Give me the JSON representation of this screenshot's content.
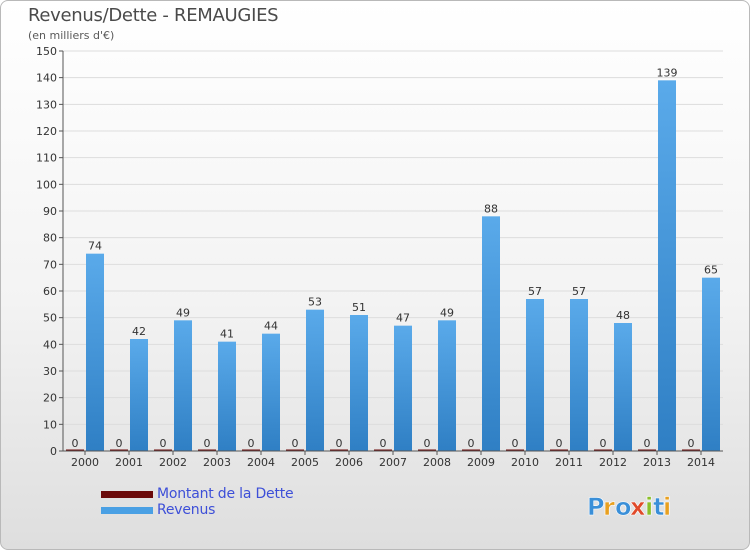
{
  "colors": {
    "dette": "#6b0a0a",
    "revenus": "#3d8fd6",
    "revenus_light": "#5aaaea",
    "grid": "#dddddd",
    "axis": "#555555",
    "text": "#333333"
  },
  "header": {
    "title": "Revenus/Dette - REMAUGIES",
    "subtitle": "(en milliers d'€)"
  },
  "legend": {
    "items": [
      {
        "label": "Montant de la Dette",
        "color": "#6b0a0a"
      },
      {
        "label": "Revenus",
        "color": "#4aa0e4"
      }
    ]
  },
  "logo": {
    "text": "Proxiti",
    "icon": "proxiti-logo"
  },
  "chart_data": {
    "type": "bar",
    "title": "Revenus/Dette - REMAUGIES",
    "subtitle": "(en milliers d'€)",
    "categories": [
      "2000",
      "2001",
      "2002",
      "2003",
      "2004",
      "2005",
      "2006",
      "2007",
      "2008",
      "2009",
      "2010",
      "2011",
      "2012",
      "2013",
      "2014"
    ],
    "series": [
      {
        "name": "Montant de la Dette",
        "values": [
          0,
          0,
          0,
          0,
          0,
          0,
          0,
          0,
          0,
          0,
          0,
          0,
          0,
          0,
          0
        ]
      },
      {
        "name": "Revenus",
        "values": [
          74,
          42,
          49,
          41,
          44,
          53,
          51,
          47,
          49,
          88,
          57,
          57,
          48,
          139,
          65
        ]
      }
    ],
    "ylim": [
      0,
      150
    ],
    "yticks": [
      0,
      10,
      20,
      30,
      40,
      50,
      60,
      70,
      80,
      90,
      100,
      110,
      120,
      130,
      140,
      150
    ],
    "grid": true,
    "legend_position": "bottom-left",
    "data_labels": true
  }
}
